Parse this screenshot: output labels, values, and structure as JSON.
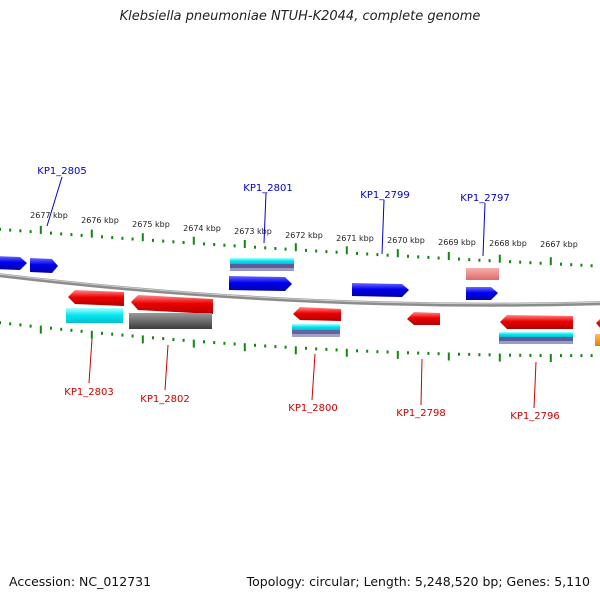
{
  "title": "Klebsiella pneumoniae NTUH-K2044, complete genome",
  "footer": {
    "accession": "Accession: NC_012731",
    "summary": "Topology: circular; Length: 5,248,520 bp; Genes: 5,110"
  },
  "scale_labels": [
    "2677 kbp",
    "2676 kbp",
    "2675 kbp",
    "2674 kbp",
    "2673 kbp",
    "2672 kbp",
    "2671 kbp",
    "2670 kbp",
    "2669 kbp",
    "2668 kbp",
    "2667 kbp"
  ],
  "genes_forward": [
    "KP1_2805",
    "KP1_2801",
    "KP1_2799",
    "KP1_2797"
  ],
  "genes_reverse": [
    "KP1_2803",
    "KP1_2802",
    "KP1_2800",
    "KP1_2798",
    "KP1_2796"
  ],
  "colors": {
    "forward_label": "#0000cc",
    "reverse_label": "#cc0000",
    "forward_gene": "#0000ee",
    "reverse_gene": "#ee0000",
    "tick": "#118811",
    "backbone": "#888888"
  }
}
